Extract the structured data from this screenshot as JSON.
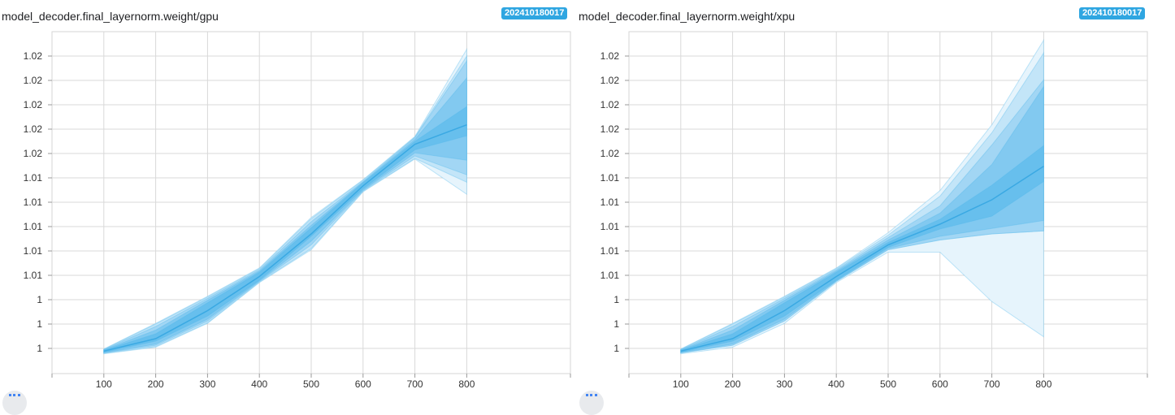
{
  "chart_data": [
    {
      "type": "area",
      "title": "model_decoder.final_layernorm.weight/gpu",
      "run_tag": "202410180017",
      "xlabel": "",
      "ylabel": "",
      "y_tick_labels": [
        "1",
        "1",
        "1",
        "1.01",
        "1.01",
        "1.01",
        "1.01",
        "1.01",
        "1.02",
        "1.02",
        "1.02",
        "1.02",
        "1.02"
      ],
      "y_tick_values": [
        1.0,
        1.002,
        1.004,
        1.006,
        1.008,
        1.01,
        1.012,
        1.014,
        1.016,
        1.018,
        1.02,
        1.022,
        1.024
      ],
      "ylim": [
        0.998,
        1.0255
      ],
      "xlim": [
        0,
        1000
      ],
      "x_ticks": [
        100,
        200,
        300,
        400,
        500,
        600,
        700,
        800
      ],
      "grid": true,
      "color": "#4fb7ec",
      "x": [
        100,
        200,
        300,
        400,
        500,
        600,
        700,
        800
      ],
      "bands": [
        {
          "name": "",
          "upper": [
            0.99995,
            1.00205,
            1.00428,
            1.0066,
            1.01075,
            1.01385,
            1.0174,
            1.02455
          ],
          "lower": [
            0.99955,
            1.0001,
            1.00205,
            1.0054,
            1.0081,
            1.01285,
            1.01555,
            1.01265
          ]
        },
        {
          "name": "",
          "upper": [
            0.99993,
            1.002,
            1.00422,
            1.00655,
            1.01065,
            1.0138,
            1.01735,
            1.024
          ],
          "lower": [
            0.9996,
            1.00015,
            1.0021,
            1.00545,
            1.0082,
            1.0129,
            1.0156,
            1.01365
          ]
        },
        {
          "name": "",
          "upper": [
            0.9999,
            1.0018,
            1.0041,
            1.00645,
            1.0104,
            1.0137,
            1.0173,
            1.0236
          ],
          "lower": [
            0.99963,
            1.00025,
            1.00225,
            1.0055,
            1.0085,
            1.01295,
            1.0158,
            1.01425
          ]
        },
        {
          "name": "",
          "upper": [
            0.99988,
            1.0015,
            1.00395,
            1.00635,
            1.0101,
            1.01365,
            1.01715,
            1.0222
          ],
          "lower": [
            0.99965,
            1.00035,
            1.0024,
            1.00555,
            1.0088,
            1.013,
            1.01605,
            1.01545
          ]
        },
        {
          "name": "",
          "upper": [
            0.99985,
            1.0012,
            1.00375,
            1.00625,
            1.0099,
            1.0136,
            1.017,
            1.01985
          ],
          "lower": [
            0.99968,
            1.0006,
            1.00265,
            1.0056,
            1.0092,
            1.0131,
            1.0163,
            1.01745
          ]
        }
      ],
      "series": [
        {
          "name": "",
          "values": [
            0.99978,
            1.0008,
            1.0031,
            1.0059,
            1.0094,
            1.01335,
            1.01675,
            1.01835
          ]
        }
      ]
    },
    {
      "type": "area",
      "title": "model_decoder.final_layernorm.weight/xpu",
      "run_tag": "202410180017",
      "xlabel": "",
      "ylabel": "",
      "y_tick_labels": [
        "1",
        "1",
        "1",
        "1.01",
        "1.01",
        "1.01",
        "1.01",
        "1.01",
        "1.02",
        "1.02",
        "1.02",
        "1.02",
        "1.02"
      ],
      "y_tick_values": [
        1.0,
        1.002,
        1.004,
        1.006,
        1.008,
        1.01,
        1.012,
        1.014,
        1.016,
        1.018,
        1.02,
        1.022,
        1.024
      ],
      "ylim": [
        0.998,
        1.0255
      ],
      "xlim": [
        0,
        1000
      ],
      "x_ticks": [
        100,
        200,
        300,
        400,
        500,
        600,
        700,
        800
      ],
      "grid": true,
      "color": "#4fb7ec",
      "x": [
        100,
        200,
        300,
        400,
        500,
        600,
        700,
        800
      ],
      "bands": [
        {
          "name": "",
          "upper": [
            0.99995,
            1.00205,
            1.00428,
            1.0066,
            1.0095,
            1.01295,
            1.01835,
            1.0253
          ],
          "lower": [
            0.99955,
            1.0001,
            1.00205,
            1.0054,
            1.0079,
            1.0079,
            1.00385,
            1.00095
          ]
        },
        {
          "name": "",
          "upper": [
            0.99993,
            1.002,
            1.00422,
            1.00655,
            1.0093,
            1.0125,
            1.0177,
            1.02425
          ]
        },
        {
          "name": "",
          "upper": [
            0.9999,
            1.0018,
            1.0041,
            1.00645,
            1.0091,
            1.0117,
            1.0167,
            1.02205
          ],
          "lower": [
            0.99963,
            1.00025,
            1.00225,
            1.0055,
            1.0081,
            1.0089,
            1.0094,
            1.00965
          ]
        },
        {
          "name": "",
          "upper": [
            0.99988,
            1.0015,
            1.00395,
            1.00635,
            1.0089,
            1.0111,
            1.0151,
            1.0215
          ],
          "lower": [
            0.99965,
            1.00035,
            1.0024,
            1.00555,
            1.0082,
            1.0092,
            1.00985,
            1.0105
          ]
        },
        {
          "name": "",
          "upper": [
            0.99985,
            1.0012,
            1.00375,
            1.00625,
            1.0087,
            1.0106,
            1.0134,
            1.01665
          ],
          "lower": [
            0.99968,
            1.0006,
            1.00265,
            1.0056,
            1.0083,
            1.0098,
            1.01085,
            1.0137
          ]
        }
      ],
      "series": [
        {
          "name": "",
          "values": [
            0.99978,
            1.0008,
            1.0031,
            1.0059,
            1.0085,
            1.0102,
            1.0122,
            1.01495
          ]
        }
      ]
    }
  ]
}
